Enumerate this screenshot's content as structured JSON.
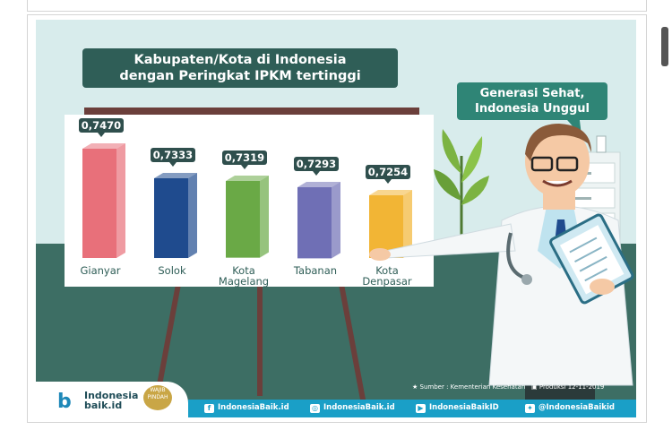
{
  "infographic": {
    "title_line1": "Kabupaten/Kota di Indonesia",
    "title_line2": "dengan Peringkat IPKM tertinggi",
    "bubble_line1": "Generasi Sehat,",
    "bubble_line2": "Indonesia Unggul",
    "source": "Sumber : Kementerian Kesehatan",
    "production": "Produksi 12-11-2019",
    "logo_line1": "Indonesia",
    "logo_line2": "baik.id",
    "seal_text": "WAJIB PINDAH"
  },
  "footer": {
    "facebook": "IndonesiaBaik.id",
    "instagram": "IndonesiaBaik.id",
    "youtube": "IndonesiaBaikID",
    "twitter": "@IndonesiaBaikid"
  },
  "colors": {
    "bar_colors": [
      "#e8707a",
      "#1f4b8e",
      "#6aa946",
      "#6f6fb5",
      "#f2b535"
    ],
    "title_bg": "#2f5e57",
    "footer_bg": "#1a9fc7"
  },
  "chart_data": {
    "type": "bar",
    "title": "Kabupaten/Kota di Indonesia dengan Peringkat IPKM tertinggi",
    "categories": [
      "Gianyar",
      "Solok",
      "Kota Magelang",
      "Tabanan",
      "Kota Denpasar"
    ],
    "category_lines": [
      [
        "Gianyar"
      ],
      [
        "Solok"
      ],
      [
        "Kota",
        "Magelang"
      ],
      [
        "Tabanan"
      ],
      [
        "Kota",
        "Denpasar"
      ]
    ],
    "values": [
      0.747,
      0.7333,
      0.7319,
      0.7293,
      0.7254
    ],
    "value_labels": [
      "0,7470",
      "0,7333",
      "0,7319",
      "0,7293",
      "0,7254"
    ],
    "ylim": [
      0.7,
      0.75
    ],
    "grid": false
  }
}
